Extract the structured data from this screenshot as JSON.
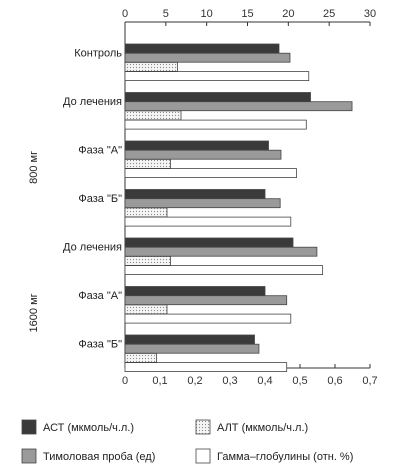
{
  "chart_data": {
    "type": "bar",
    "orientation": "horizontal",
    "categories": [
      "Контроль",
      "До лечения",
      "Фаза \"А\"",
      "Фаза \"Б\"",
      "До лечения",
      "Фаза \"А\"",
      "Фаза \"Б\""
    ],
    "group_labels": [
      {
        "label": "800  мг",
        "categories": [
          1,
          2,
          3
        ]
      },
      {
        "label": "1600  мг",
        "categories": [
          4,
          5,
          6
        ]
      }
    ],
    "top_axis": {
      "range": [
        0,
        30
      ],
      "ticks": [
        "0",
        "5",
        "10",
        "15",
        "20",
        "25",
        "30"
      ],
      "grid": false
    },
    "bottom_axis": {
      "range": [
        0,
        0.7
      ],
      "ticks": [
        "0",
        "0,1",
        "0,2",
        "0,3",
        "0,4",
        "0,5",
        "0,6",
        "0,7"
      ],
      "grid": false
    },
    "series": [
      {
        "name": "АСТ (мкмоль/ч.л.)",
        "axis": "bottom",
        "fill": "#3a3a3a",
        "pattern": "solid",
        "values": [
          0.44,
          0.53,
          0.41,
          0.4,
          0.48,
          0.4,
          0.37
        ]
      },
      {
        "name": "Тимоловая проба (ед)",
        "axis": "top",
        "fill": "#9a9a9a",
        "pattern": "solid",
        "values": [
          20.2,
          27.8,
          19.1,
          19.0,
          23.5,
          19.8,
          16.4
        ]
      },
      {
        "name": "АЛТ (мкмоль/ч.л.)",
        "axis": "bottom",
        "fill": "#f2f2f2",
        "pattern": "dotted",
        "values": [
          0.15,
          0.16,
          0.13,
          0.12,
          0.13,
          0.12,
          0.09
        ]
      },
      {
        "name": "Гамма–глобулины (отн. %)",
        "axis": "top",
        "fill": "#ffffff",
        "pattern": "solid",
        "values": [
          22.5,
          22.2,
          21.0,
          20.3,
          24.2,
          20.3,
          19.8
        ]
      }
    ],
    "legend": {
      "placement": "bottom",
      "items": [
        {
          "label": "АСТ (мкмоль/ч.л.)",
          "fill": "#3a3a3a",
          "pattern": "solid"
        },
        {
          "label": "АЛТ (мкмоль/ч.л.)",
          "fill": "#f2f2f2",
          "pattern": "dotted"
        },
        {
          "label": "Тимоловая проба (ед)",
          "fill": "#9a9a9a",
          "pattern": "solid"
        },
        {
          "label": "Гамма–глобулины (отн. %)",
          "fill": "#ffffff",
          "pattern": "solid"
        }
      ]
    },
    "title": "",
    "xlabel": "",
    "ylabel": ""
  },
  "colors": {
    "axis": "#333333",
    "border": "#444444"
  }
}
